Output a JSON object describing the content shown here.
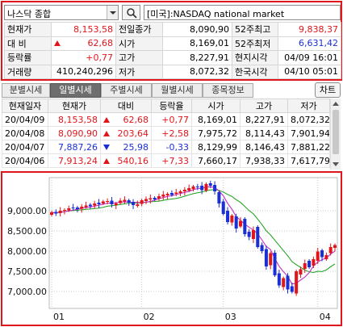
{
  "search": {
    "market": "나스닥 종합",
    "symbol": "[미국]:NASDAQ national market"
  },
  "quote": {
    "rows": [
      {
        "l1": "현재가",
        "v1": "8,153,58",
        "l2": "전일종가",
        "v2": "8,090,90",
        "l3": "52주최고",
        "v3": "9,838,37"
      },
      {
        "l1": "대 비",
        "v1": "62,68",
        "l2": "시가",
        "v2": "8,169,01",
        "l3": "52주최저",
        "v3": "6,631,42"
      },
      {
        "l1": "등락률",
        "v1": "+0,77",
        "l2": "고가",
        "v2": "8,227,91",
        "l3": "현지시각",
        "v3": "04/09 16:01"
      },
      {
        "l1": "거래량",
        "v1": "410,240,296",
        "l2": "저가",
        "v2": "8,072,32",
        "l3": "한국시각",
        "v3": "04/10 05:01"
      }
    ]
  },
  "tabs": [
    "분별시세",
    "일별시세",
    "주별시세",
    "월별시세",
    "종목정보"
  ],
  "active_tab": "일별시세",
  "chart_button": "차트",
  "daily": {
    "headers": [
      "현재일자",
      "현재가",
      "대비",
      "등락율",
      "시가",
      "고가",
      "저가"
    ],
    "rows": [
      {
        "date": "20/04/09",
        "price": "8,153,58",
        "dir": "up",
        "change": "62,68",
        "rate": "+0,77",
        "open": "8,169,01",
        "high": "8,227,91",
        "low": "8,072,32"
      },
      {
        "date": "20/04/08",
        "price": "8,090,90",
        "dir": "up",
        "change": "203,64",
        "rate": "+2,58",
        "open": "7,975,72",
        "high": "8,114,43",
        "low": "7,901,94"
      },
      {
        "date": "20/04/07",
        "price": "7,887,26",
        "dir": "dn",
        "change": "25,98",
        "rate": "-0,33",
        "open": "8,129,99",
        "high": "8,146,43",
        "low": "7,881,22"
      },
      {
        "date": "20/04/06",
        "price": "7,913,24",
        "dir": "up",
        "change": "540,16",
        "rate": "+7,33",
        "open": "7,660,17",
        "high": "7,938,33",
        "low": "7,617,79"
      }
    ]
  },
  "colors": {
    "up": "#e0161b",
    "down": "#1a2fd6",
    "ma_short": "#c020c0",
    "ma_long": "#18a018",
    "highlight_border": "#e0161b"
  },
  "icons": {
    "search": "search-icon",
    "dropdown": "chevron-down-icon"
  },
  "chart_data": {
    "type": "candlestick",
    "ytick_labels": [
      "9,000.00",
      "8,500.00",
      "8,000.00",
      "7,500.00",
      "7,000.00"
    ],
    "yticks": [
      9000,
      8500,
      8000,
      7500,
      7000
    ],
    "ylim": [
      6580,
      9820
    ],
    "xtick_labels": [
      "01",
      "02",
      "03",
      "04"
    ],
    "xtick_index": [
      0,
      21,
      40,
      62
    ],
    "moving_averages": [
      "ma_short",
      "ma_long"
    ],
    "closes": [
      8960,
      8930,
      9000,
      9020,
      9060,
      9070,
      9040,
      9100,
      9130,
      9110,
      9180,
      9160,
      9230,
      9240,
      9160,
      9180,
      9250,
      9270,
      9200,
      9140,
      9160,
      9260,
      9290,
      9310,
      9280,
      9360,
      9400,
      9420,
      9390,
      9450,
      9480,
      9520,
      9560,
      9600,
      9590,
      9510,
      9660,
      9620,
      9480,
      9180,
      8920,
      8720,
      8880,
      8560,
      8750,
      8420,
      8350,
      8520,
      8100,
      8000,
      7620,
      7950,
      7400,
      7150,
      7330,
      7050,
      6990,
      7500,
      7550,
      7700,
      7600,
      7800,
      7990,
      7850,
      7900,
      8100,
      8150
    ],
    "opens": [
      8900,
      8970,
      8940,
      9010,
      9010,
      9080,
      9080,
      9050,
      9090,
      9150,
      9130,
      9200,
      9180,
      9220,
      9250,
      9140,
      9190,
      9230,
      9260,
      9220,
      9120,
      9170,
      9240,
      9280,
      9320,
      9300,
      9350,
      9380,
      9440,
      9420,
      9440,
      9480,
      9500,
      9540,
      9600,
      9620,
      9500,
      9680,
      9640,
      9460,
      9230,
      9000,
      8710,
      8860,
      8610,
      8800,
      8480,
      8300,
      8600,
      8150,
      8050,
      7650,
      7960,
      7450,
      7110,
      7390,
      7130,
      6950,
      7420,
      7560,
      7760,
      7640,
      7760,
      8020,
      7800,
      7950,
      8080
    ]
  }
}
